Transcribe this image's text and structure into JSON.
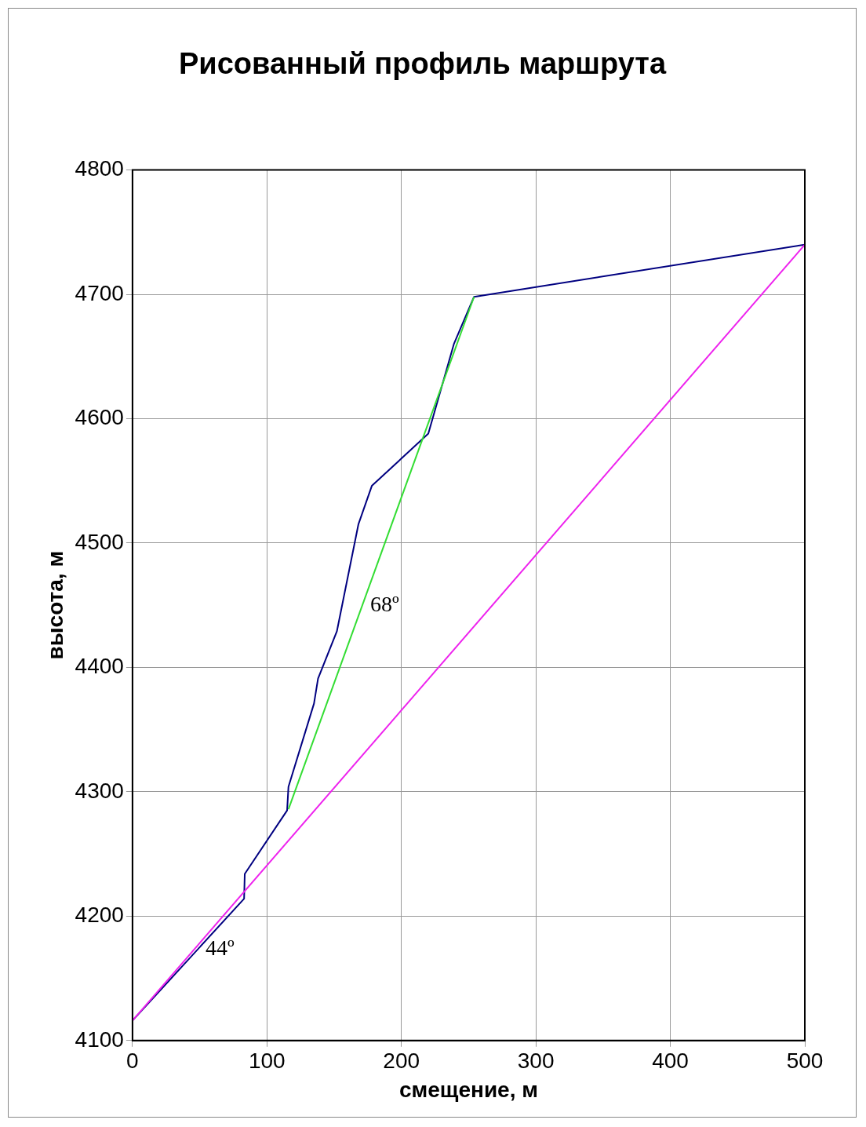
{
  "chart_data": {
    "type": "line",
    "title": "Рисованный профиль маршрута",
    "xlabel": "смещение, м",
    "ylabel": "высота, м",
    "series": [
      {
        "color": "#000080",
        "x": [
          0,
          83,
          83.5,
          115,
          116,
          135,
          138,
          152,
          168,
          178,
          220,
          239,
          254,
          500
        ],
        "values": [
          4116,
          4214,
          4234,
          4285,
          4304,
          4371,
          4391,
          4429,
          4515,
          4546,
          4588,
          4660,
          4698,
          4740
        ]
      },
      {
        "color": "#33dd33",
        "x": [
          116,
          254
        ],
        "values": [
          4286,
          4698
        ]
      },
      {
        "color": "#ee22ee",
        "x": [
          0,
          500
        ],
        "values": [
          4116,
          4740
        ]
      }
    ],
    "xlim": [
      0,
      500
    ],
    "xticks": [
      0,
      100,
      200,
      300,
      400,
      500
    ],
    "ylim": [
      4100,
      4800
    ],
    "yticks": [
      4100,
      4200,
      4300,
      4400,
      4500,
      4600,
      4700,
      4800
    ],
    "grid": true,
    "legend": false,
    "marker": "none",
    "line_style": "solid",
    "annotations": [
      "44º",
      "68º"
    ]
  }
}
